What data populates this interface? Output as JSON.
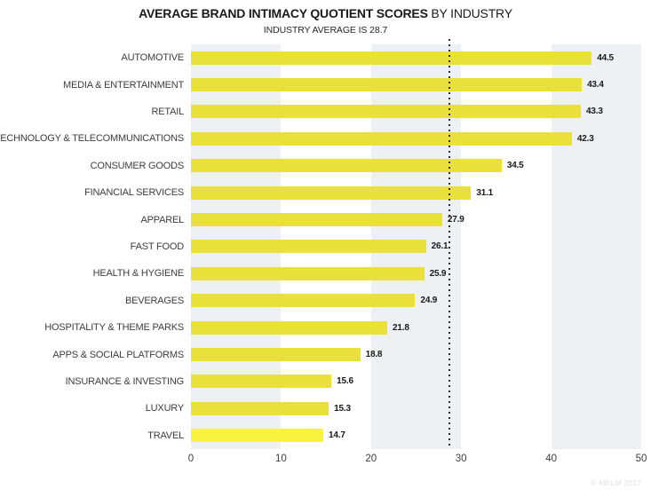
{
  "title": {
    "bold": "AVERAGE BRAND INTIMACY QUOTIENT SCORES",
    "tail": "BY INDUSTRY"
  },
  "subtitle": "INDUSTRY AVERAGE IS 28.7",
  "watermark": "© MBLM 2017",
  "chart_data": {
    "type": "bar",
    "orientation": "horizontal",
    "title": "AVERAGE BRAND INTIMACY QUOTIENT SCORES BY INDUSTRY",
    "subtitle": "INDUSTRY AVERAGE IS 28.7",
    "categories": [
      "AUTOMOTIVE",
      "MEDIA & ENTERTAINMENT",
      "RETAIL",
      "TECHNOLOGY & TELECOMMUNICATIONS",
      "CONSUMER GOODS",
      "FINANCIAL SERVICES",
      "APPAREL",
      "FAST FOOD",
      "HEALTH & HYGIENE",
      "BEVERAGES",
      "HOSPITALITY & THEME PARKS",
      "APPS & SOCIAL PLATFORMS",
      "INSURANCE & INVESTING",
      "LUXURY",
      "TRAVEL"
    ],
    "values": [
      44.5,
      43.4,
      43.3,
      42.3,
      34.5,
      31.1,
      27.9,
      26.1,
      25.9,
      24.9,
      21.8,
      18.8,
      15.6,
      15.3,
      14.7
    ],
    "xlabel": "",
    "ylabel": "",
    "xlim": [
      0,
      50
    ],
    "xticks": [
      0,
      10,
      20,
      30,
      40,
      50
    ],
    "reference_line": {
      "value": 28.7,
      "label": "INDUSTRY AVERAGE IS 28.7",
      "style": "dotted"
    },
    "bar_color": "#e9e03b",
    "highlight_bar_color": "#f9f340",
    "highlight_index": 14,
    "band_color": "#eef1f4",
    "grid": "alternating-vertical-bands",
    "legend": "none"
  }
}
